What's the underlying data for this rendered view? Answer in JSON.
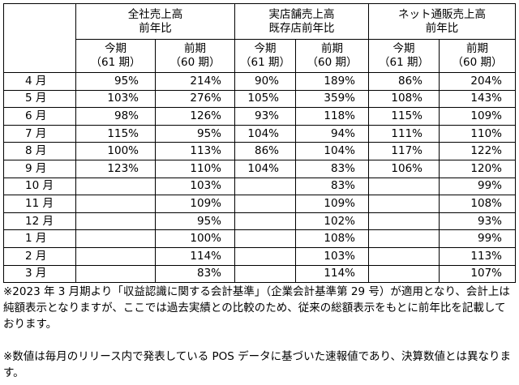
{
  "header": {
    "group1_line1": "全社売上高",
    "group1_line2": "前年比",
    "group2_line1": "実店舗売上高",
    "group2_line2": "既存店前年比",
    "group3_line1": "ネット通販売上高",
    "group3_line2": "前年比",
    "current_label": "今期",
    "current_sub": "（61 期）",
    "prior_label": "前期",
    "prior_sub": "（60 期）"
  },
  "rows": [
    {
      "month": "4 月",
      "v": [
        "95%",
        "214%",
        "90%",
        "189%",
        "86%",
        "204%"
      ]
    },
    {
      "month": "5 月",
      "v": [
        "103%",
        "276%",
        "105%",
        "359%",
        "108%",
        "143%"
      ]
    },
    {
      "month": "6 月",
      "v": [
        "98%",
        "126%",
        "93%",
        "118%",
        "115%",
        "109%"
      ]
    },
    {
      "month": "7 月",
      "v": [
        "115%",
        "95%",
        "104%",
        "94%",
        "111%",
        "110%"
      ]
    },
    {
      "month": "8 月",
      "v": [
        "100%",
        "113%",
        "86%",
        "104%",
        "117%",
        "122%"
      ]
    },
    {
      "month": "9 月",
      "v": [
        "123%",
        "110%",
        "104%",
        "83%",
        "106%",
        "120%"
      ]
    },
    {
      "month": "10 月",
      "v": [
        "",
        "103%",
        "",
        "83%",
        "",
        "99%"
      ]
    },
    {
      "month": "11 月",
      "v": [
        "",
        "109%",
        "",
        "109%",
        "",
        "108%"
      ]
    },
    {
      "month": "12 月",
      "v": [
        "",
        "95%",
        "",
        "102%",
        "",
        "93%"
      ]
    },
    {
      "month": "1 月",
      "v": [
        "",
        "100%",
        "",
        "108%",
        "",
        "99%"
      ]
    },
    {
      "month": "2 月",
      "v": [
        "",
        "114%",
        "",
        "103%",
        "",
        "113%"
      ]
    },
    {
      "month": "3 月",
      "v": [
        "",
        "83%",
        "",
        "114%",
        "",
        "107%"
      ]
    }
  ],
  "notes": {
    "note1": "※2023 年 3 月期より「収益認識に関する会計基準」（企業会計基準第 29 号）が適用となり、会計上は純額表示となりますが、ここでは過去実績との比較のため、従来の総額表示をもとに前年比を記載しております。",
    "note2": "※数値は毎月のリリース内で発表している POS データに基づいた速報値であり、決算数値とは異なります。"
  }
}
